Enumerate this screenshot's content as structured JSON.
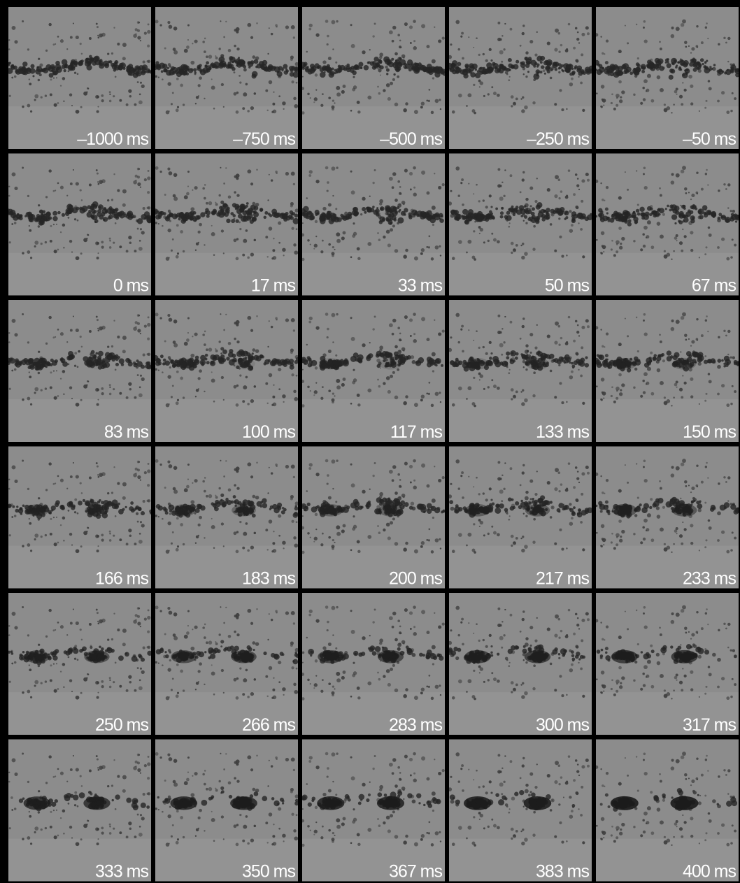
{
  "frames": [
    "–1000 ms",
    "–750 ms",
    "–500 ms",
    "–250 ms",
    "–50 ms",
    "0 ms",
    "17 ms",
    "33 ms",
    "50 ms",
    "67 ms",
    "83 ms",
    "100 ms",
    "117 ms",
    "133 ms",
    "150 ms",
    "166 ms",
    "183 ms",
    "200 ms",
    "217 ms",
    "233 ms",
    "250 ms",
    "266 ms",
    "283 ms",
    "300 ms",
    "317 ms",
    "333 ms",
    "350 ms",
    "367 ms",
    "383 ms",
    "400 ms"
  ]
}
